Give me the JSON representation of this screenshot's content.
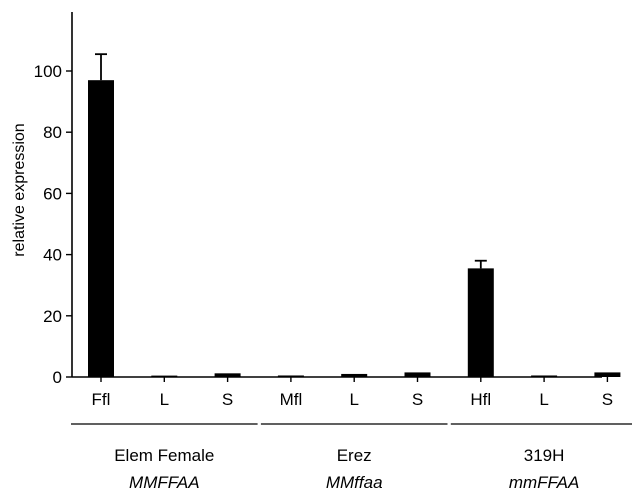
{
  "chart_data": {
    "type": "bar",
    "ylabel": "relative expression",
    "ylim": [
      0,
      120
    ],
    "yticks": [
      0,
      20,
      40,
      60,
      80,
      100
    ],
    "bar_color": "#000000",
    "categories": [
      "Ffl",
      "L",
      "S",
      "Mfl",
      "L",
      "S",
      "Hfl",
      "L",
      "S"
    ],
    "values": [
      97,
      0,
      1.2,
      0.5,
      1,
      1.5,
      35.5,
      0.5,
      1.5
    ],
    "errors": [
      8.5,
      0,
      0.3,
      0.2,
      0.2,
      0.3,
      2.5,
      0.2,
      0.3
    ],
    "groups": [
      {
        "name": "Elem Female",
        "genotype": "MMFFAA",
        "members": [
          0,
          1,
          2
        ]
      },
      {
        "name": "Erez",
        "genotype": "MMffaa",
        "members": [
          3,
          4,
          5
        ]
      },
      {
        "name": "319H",
        "genotype": "mmFFAA",
        "members": [
          6,
          7,
          8
        ]
      }
    ]
  }
}
